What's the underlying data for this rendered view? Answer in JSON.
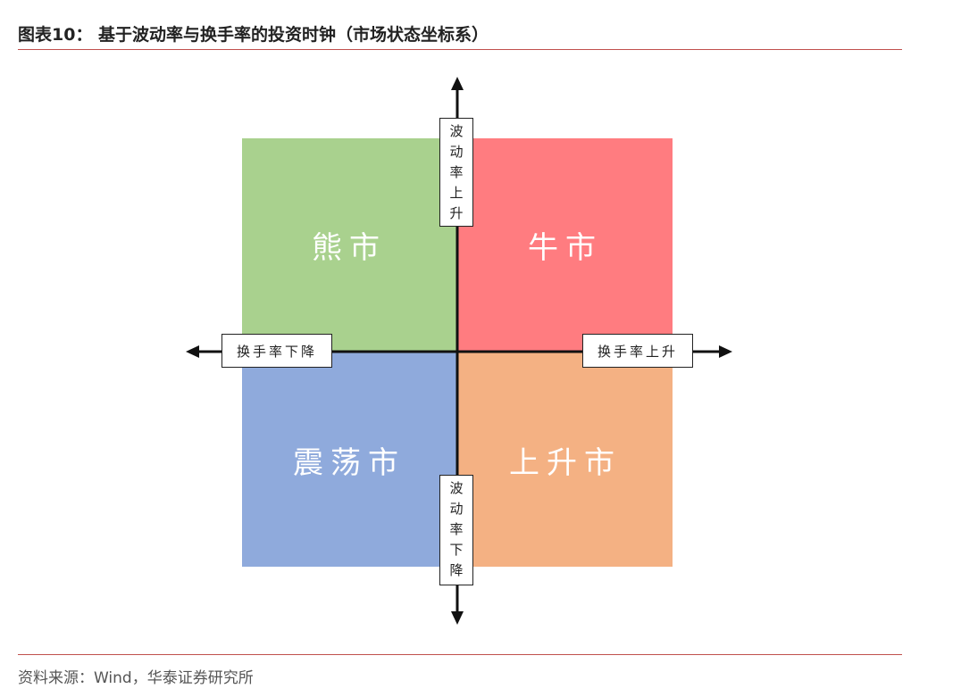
{
  "header": {
    "title": "图表10： 基于波动率与换手率的投资时钟（市场状态坐标系）"
  },
  "quadrants": {
    "top_left": "熊市",
    "top_right": "牛市",
    "bottom_left": "震荡市",
    "bottom_right": "上升市"
  },
  "axis_labels": {
    "up": [
      "波",
      "动",
      "率",
      "上",
      "升"
    ],
    "down": [
      "波",
      "动",
      "率",
      "下",
      "降"
    ],
    "left": "换手率下降",
    "right": "换手率上升"
  },
  "colors": {
    "bear": "#a9d18e",
    "bull": "#ff7c80",
    "range": "#8faadc",
    "rising": "#f4b183",
    "rule": "#c0504d"
  },
  "footer": {
    "source": "资料来源：Wind，华泰证券研究所"
  }
}
